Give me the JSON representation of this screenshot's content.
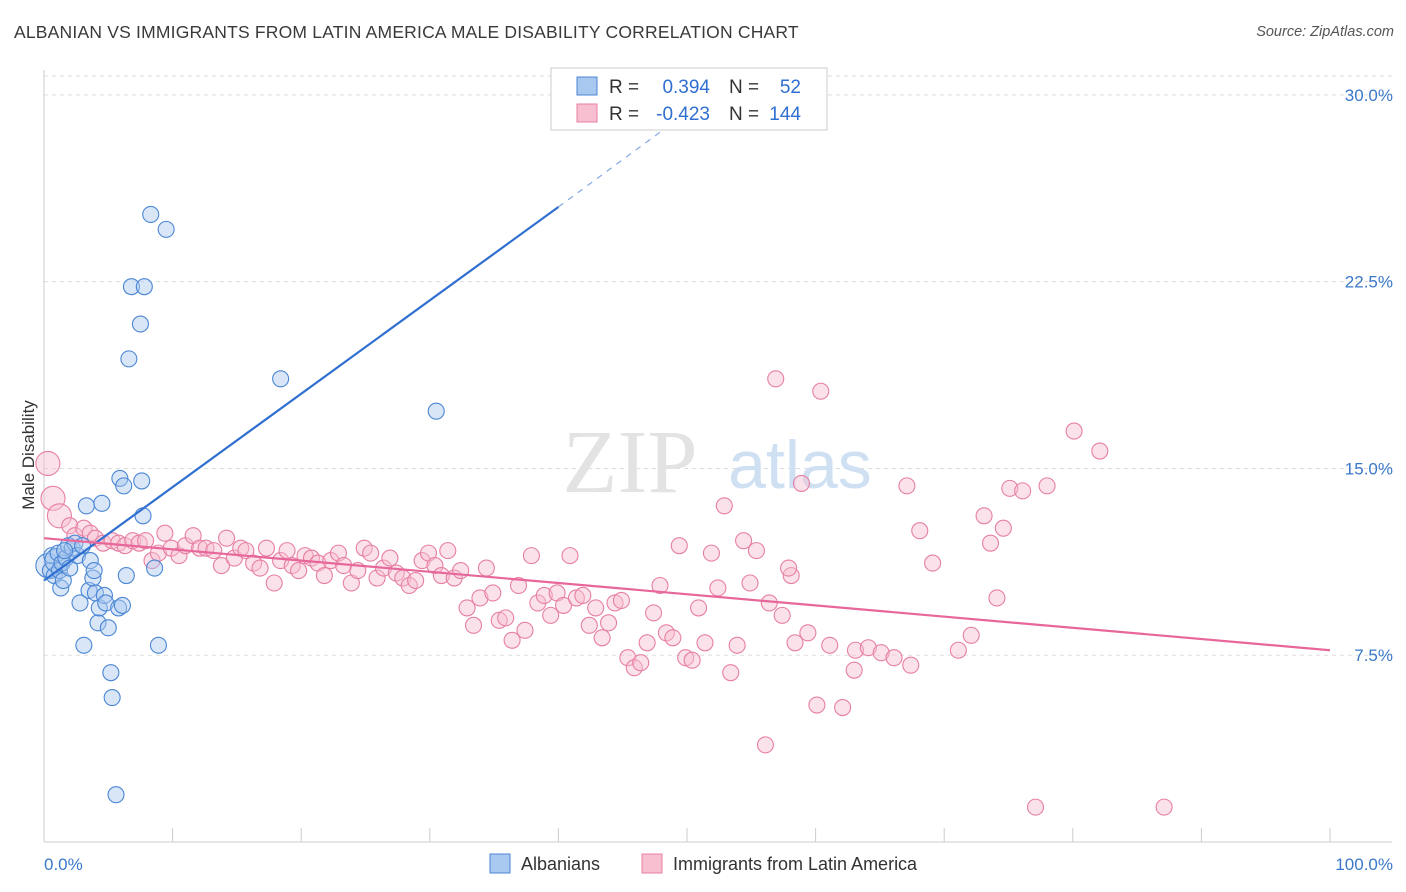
{
  "title": "ALBANIAN VS IMMIGRANTS FROM LATIN AMERICA MALE DISABILITY CORRELATION CHART",
  "source": "Source: ZipAtlas.com",
  "watermark": {
    "zip": "ZIP",
    "atlas": "atlas"
  },
  "colors": {
    "albanians_fill": "#a9c8f0",
    "albanians_stroke": "#4a86d4",
    "albanians_line": "#2f6fd0",
    "latin_fill": "#f7bfd0",
    "latin_stroke": "#e77fa3",
    "latin_line": "#e8679a",
    "tick_text": "#3a78c9",
    "grid": "#dddddd"
  },
  "legend": {
    "rows": [
      {
        "r_label": "R =",
        "r_value": "0.394",
        "n_label": "N =",
        "n_value": "52"
      },
      {
        "r_label": "R =",
        "r_value": "-0.423",
        "n_label": "N =",
        "n_value": "144"
      }
    ]
  },
  "chart_data": {
    "type": "scatter",
    "title": "ALBANIAN VS IMMIGRANTS FROM LATIN AMERICA MALE DISABILITY CORRELATION CHART",
    "xlabel": "",
    "ylabel": "Male Disability",
    "xlim": [
      0,
      100
    ],
    "ylim": [
      0,
      31
    ],
    "x_tick_labels": [
      "0.0%",
      "100.0%"
    ],
    "y_ticks": [
      7.5,
      15.0,
      22.5,
      30.0
    ],
    "y_tick_labels": [
      "7.5%",
      "15.0%",
      "22.5%",
      "30.0%"
    ],
    "grid": true,
    "legend_position": "bottom",
    "series": [
      {
        "name": "Albanians",
        "r": 0.394,
        "n": 52,
        "trend": {
          "x0": 0,
          "y0": 10.5,
          "x1": 40.0,
          "y1": 25.5,
          "dash_x1": 50.0,
          "dash_y1": 29.3
        },
        "points": [
          [
            0.3,
            11.1
          ],
          [
            0.5,
            10.9
          ],
          [
            0.6,
            11.5
          ],
          [
            0.8,
            10.7
          ],
          [
            1.0,
            11.3
          ],
          [
            1.1,
            11.6
          ],
          [
            1.2,
            10.9
          ],
          [
            1.3,
            10.2
          ],
          [
            1.4,
            11.2
          ],
          [
            1.5,
            10.5
          ],
          [
            1.7,
            11.4
          ],
          [
            1.9,
            11.9
          ],
          [
            2.0,
            11.0
          ],
          [
            2.2,
            11.8
          ],
          [
            2.4,
            12.0
          ],
          [
            2.6,
            11.5
          ],
          [
            2.8,
            9.6
          ],
          [
            3.0,
            11.9
          ],
          [
            3.1,
            7.9
          ],
          [
            3.3,
            13.5
          ],
          [
            3.5,
            10.1
          ],
          [
            3.6,
            11.3
          ],
          [
            3.8,
            10.6
          ],
          [
            3.9,
            10.9
          ],
          [
            4.0,
            10.0
          ],
          [
            4.2,
            8.8
          ],
          [
            4.3,
            9.4
          ],
          [
            4.5,
            13.6
          ],
          [
            4.7,
            9.9
          ],
          [
            4.8,
            9.6
          ],
          [
            5.0,
            8.6
          ],
          [
            5.2,
            6.8
          ],
          [
            5.3,
            5.8
          ],
          [
            5.6,
            1.9
          ],
          [
            5.8,
            9.4
          ],
          [
            5.9,
            14.6
          ],
          [
            6.1,
            9.5
          ],
          [
            6.2,
            14.3
          ],
          [
            6.4,
            10.7
          ],
          [
            6.6,
            19.4
          ],
          [
            6.8,
            22.3
          ],
          [
            7.5,
            20.8
          ],
          [
            7.6,
            14.5
          ],
          [
            7.7,
            13.1
          ],
          [
            7.8,
            22.3
          ],
          [
            8.3,
            25.2
          ],
          [
            8.6,
            11.0
          ],
          [
            8.9,
            7.9
          ],
          [
            9.5,
            24.6
          ],
          [
            18.4,
            18.6
          ],
          [
            30.5,
            17.3
          ],
          [
            1.6,
            11.7
          ]
        ],
        "sizes_large": [
          [
            0.3,
            11.1
          ],
          [
            1.0,
            11.3
          ]
        ]
      },
      {
        "name": "Immigrants from Latin America",
        "r": -0.423,
        "n": 144,
        "trend": {
          "x0": 0,
          "y0": 12.2,
          "x1": 100,
          "y1": 7.7
        },
        "points": [
          [
            0.3,
            15.2
          ],
          [
            0.7,
            13.8
          ],
          [
            1.2,
            13.1
          ],
          [
            2.0,
            12.7
          ],
          [
            2.4,
            12.3
          ],
          [
            3.1,
            12.6
          ],
          [
            3.6,
            12.4
          ],
          [
            4.0,
            12.2
          ],
          [
            4.6,
            12.0
          ],
          [
            5.3,
            12.1
          ],
          [
            5.8,
            12.0
          ],
          [
            6.3,
            11.9
          ],
          [
            6.9,
            12.1
          ],
          [
            7.4,
            12.0
          ],
          [
            7.9,
            12.1
          ],
          [
            8.4,
            11.3
          ],
          [
            8.9,
            11.6
          ],
          [
            9.4,
            12.4
          ],
          [
            9.9,
            11.8
          ],
          [
            10.5,
            11.5
          ],
          [
            11.0,
            11.9
          ],
          [
            11.6,
            12.3
          ],
          [
            12.1,
            11.8
          ],
          [
            12.6,
            11.8
          ],
          [
            13.2,
            11.7
          ],
          [
            13.8,
            11.1
          ],
          [
            14.2,
            12.2
          ],
          [
            14.8,
            11.4
          ],
          [
            15.3,
            11.8
          ],
          [
            15.7,
            11.7
          ],
          [
            16.3,
            11.2
          ],
          [
            16.8,
            11.0
          ],
          [
            17.3,
            11.8
          ],
          [
            17.9,
            10.4
          ],
          [
            18.4,
            11.3
          ],
          [
            18.9,
            11.7
          ],
          [
            19.3,
            11.1
          ],
          [
            19.8,
            10.9
          ],
          [
            20.3,
            11.5
          ],
          [
            20.8,
            11.4
          ],
          [
            21.3,
            11.2
          ],
          [
            21.8,
            10.7
          ],
          [
            22.3,
            11.3
          ],
          [
            22.9,
            11.6
          ],
          [
            23.3,
            11.1
          ],
          [
            23.9,
            10.4
          ],
          [
            24.4,
            10.9
          ],
          [
            24.9,
            11.8
          ],
          [
            25.4,
            11.6
          ],
          [
            25.9,
            10.6
          ],
          [
            26.4,
            11.0
          ],
          [
            26.9,
            11.4
          ],
          [
            27.4,
            10.8
          ],
          [
            27.9,
            10.6
          ],
          [
            28.4,
            10.3
          ],
          [
            28.9,
            10.5
          ],
          [
            29.4,
            11.3
          ],
          [
            29.9,
            11.6
          ],
          [
            30.4,
            11.1
          ],
          [
            30.9,
            10.7
          ],
          [
            31.4,
            11.7
          ],
          [
            31.9,
            10.6
          ],
          [
            32.4,
            10.9
          ],
          [
            32.9,
            9.4
          ],
          [
            33.4,
            8.7
          ],
          [
            33.9,
            9.8
          ],
          [
            34.4,
            11.0
          ],
          [
            34.9,
            10.0
          ],
          [
            35.4,
            8.9
          ],
          [
            35.9,
            9.0
          ],
          [
            36.4,
            8.1
          ],
          [
            36.9,
            10.3
          ],
          [
            37.4,
            8.5
          ],
          [
            37.9,
            11.5
          ],
          [
            38.4,
            9.6
          ],
          [
            38.9,
            9.9
          ],
          [
            39.4,
            9.1
          ],
          [
            39.9,
            10.0
          ],
          [
            40.4,
            9.5
          ],
          [
            40.9,
            11.5
          ],
          [
            41.4,
            9.8
          ],
          [
            41.9,
            9.9
          ],
          [
            42.4,
            8.7
          ],
          [
            42.9,
            9.4
          ],
          [
            43.4,
            8.2
          ],
          [
            43.9,
            8.8
          ],
          [
            44.4,
            9.6
          ],
          [
            44.9,
            9.7
          ],
          [
            45.4,
            7.4
          ],
          [
            45.9,
            7.0
          ],
          [
            46.4,
            7.2
          ],
          [
            46.9,
            8.0
          ],
          [
            47.4,
            9.2
          ],
          [
            47.9,
            10.3
          ],
          [
            48.4,
            8.4
          ],
          [
            48.9,
            8.2
          ],
          [
            49.4,
            11.9
          ],
          [
            49.9,
            7.4
          ],
          [
            50.4,
            7.3
          ],
          [
            50.9,
            9.4
          ],
          [
            51.4,
            8.0
          ],
          [
            51.9,
            11.6
          ],
          [
            52.4,
            10.2
          ],
          [
            52.9,
            13.5
          ],
          [
            53.4,
            6.8
          ],
          [
            53.9,
            7.9
          ],
          [
            54.4,
            12.1
          ],
          [
            54.9,
            10.4
          ],
          [
            55.4,
            11.7
          ],
          [
            56.1,
            3.9
          ],
          [
            56.4,
            9.6
          ],
          [
            56.9,
            18.6
          ],
          [
            57.4,
            9.1
          ],
          [
            58.1,
            10.7
          ],
          [
            58.4,
            8.0
          ],
          [
            58.9,
            14.4
          ],
          [
            59.4,
            8.4
          ],
          [
            60.1,
            5.5
          ],
          [
            60.4,
            18.1
          ],
          [
            61.1,
            7.9
          ],
          [
            62.1,
            5.4
          ],
          [
            63.0,
            6.9
          ],
          [
            63.1,
            7.7
          ],
          [
            64.1,
            7.8
          ],
          [
            65.1,
            7.6
          ],
          [
            66.1,
            7.4
          ],
          [
            67.1,
            14.3
          ],
          [
            67.4,
            7.1
          ],
          [
            68.1,
            12.5
          ],
          [
            69.1,
            11.2
          ],
          [
            71.1,
            7.7
          ],
          [
            72.1,
            8.3
          ],
          [
            73.1,
            13.1
          ],
          [
            74.1,
            9.8
          ],
          [
            73.6,
            12.0
          ],
          [
            74.6,
            12.6
          ],
          [
            75.1,
            14.2
          ],
          [
            76.1,
            14.1
          ],
          [
            77.1,
            1.4
          ],
          [
            78.0,
            14.3
          ],
          [
            80.1,
            16.5
          ],
          [
            82.1,
            15.7
          ],
          [
            87.1,
            1.4
          ],
          [
            57.9,
            11.0
          ]
        ],
        "sizes_large": [
          [
            0.3,
            15.2
          ],
          [
            0.7,
            13.8
          ],
          [
            1.2,
            13.1
          ]
        ]
      }
    ]
  },
  "bottom_legend": [
    {
      "label": "Albanians"
    },
    {
      "label": "Immigrants from Latin America"
    }
  ]
}
